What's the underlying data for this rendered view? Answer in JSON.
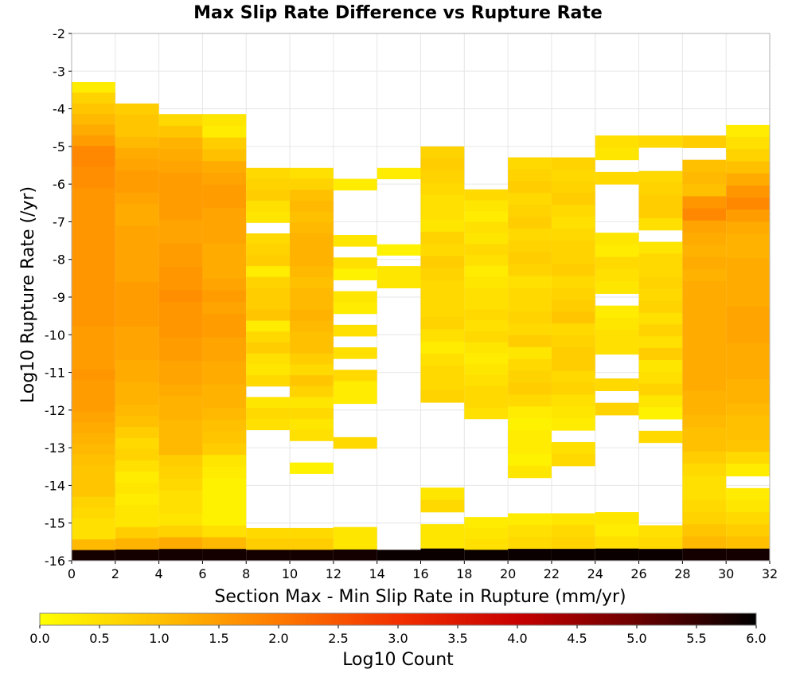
{
  "chart_data": {
    "type": "heatmap",
    "title": "Max Slip Rate Difference vs Rupture Rate",
    "xlabel": "Section Max - Min Slip Rate in Rupture (mm/yr)",
    "ylabel": "Log10 Rupture Rate (/yr)",
    "xlim": [
      0,
      32
    ],
    "ylim": [
      -16,
      -2
    ],
    "x_ticks": [
      "0",
      "2",
      "4",
      "6",
      "8",
      "10",
      "12",
      "14",
      "16",
      "18",
      "20",
      "22",
      "24",
      "26",
      "28",
      "30",
      "32"
    ],
    "y_ticks": [
      "-2",
      "-3",
      "-4",
      "-5",
      "-6",
      "-7",
      "-8",
      "-9",
      "-10",
      "-11",
      "-12",
      "-13",
      "-14",
      "-15",
      "-16"
    ],
    "x_bin_width": 2,
    "y_bin_height": 0.286,
    "colorbar": {
      "label": "Log10 Count",
      "range": [
        0,
        6
      ],
      "ticks": [
        "0.0",
        "0.5",
        "1.0",
        "1.5",
        "2.0",
        "2.5",
        "3.0",
        "3.5",
        "4.0",
        "4.5",
        "5.0",
        "5.5",
        "6.0"
      ],
      "colormap": [
        "#ffff00",
        "#ffc000",
        "#ff7a00",
        "#f23000",
        "#c80000",
        "#6a0000",
        "#000000"
      ]
    },
    "columns": [
      {
        "x": 0,
        "y_top": -3.29,
        "y_bottom": -16.0,
        "log10_counts": [
          0.3,
          0.7,
          0.9,
          1.1,
          1.3,
          1.5,
          1.8,
          1.8,
          1.7,
          1.7,
          1.6,
          1.6,
          1.6,
          1.6,
          1.6,
          1.6,
          1.6,
          1.6,
          1.6,
          1.6,
          1.6,
          1.6,
          1.6,
          1.5,
          1.5,
          1.5,
          1.5,
          1.6,
          1.5,
          1.5,
          1.5,
          1.4,
          1.3,
          1.2,
          1.1,
          1.0,
          0.9,
          0.9,
          0.9,
          0.7,
          0.6,
          0.5,
          0.5,
          1.1,
          5.8
        ]
      },
      {
        "x": 2,
        "y_top": -3.86,
        "y_bottom": -16.0,
        "log10_counts": [
          0.8,
          0.9,
          0.9,
          1.1,
          1.3,
          1.4,
          1.5,
          1.5,
          1.4,
          1.3,
          1.3,
          1.4,
          1.4,
          1.4,
          1.4,
          1.4,
          1.5,
          1.5,
          1.5,
          1.5,
          1.4,
          1.4,
          1.4,
          1.3,
          1.3,
          1.2,
          1.2,
          1.1,
          1.0,
          0.8,
          0.6,
          0.7,
          0.5,
          0.3,
          0.4,
          0.3,
          0.4,
          0.4,
          0.8,
          1.2,
          5.8
        ]
      },
      {
        "x": 4,
        "y_top": -4.14,
        "y_bottom": -16.0,
        "log10_counts": [
          0.6,
          0.9,
          1.2,
          1.3,
          1.4,
          1.5,
          1.5,
          1.5,
          1.5,
          1.4,
          1.4,
          1.5,
          1.5,
          1.6,
          1.6,
          1.7,
          1.6,
          1.6,
          1.6,
          1.5,
          1.5,
          1.4,
          1.4,
          1.3,
          1.2,
          1.2,
          1.1,
          1.1,
          1.1,
          0.8,
          0.7,
          0.6,
          0.5,
          0.5,
          0.4,
          0.7,
          1.3,
          5.8
        ]
      },
      {
        "x": 6,
        "y_top": -4.14,
        "y_bottom": -16.0,
        "log10_counts": [
          0.4,
          0.3,
          0.8,
          1.0,
          1.3,
          1.4,
          1.5,
          1.5,
          1.4,
          1.4,
          1.4,
          1.3,
          1.3,
          1.3,
          1.4,
          1.5,
          1.4,
          1.5,
          1.5,
          1.4,
          1.4,
          1.3,
          1.3,
          1.2,
          1.2,
          1.1,
          1.0,
          0.9,
          0.8,
          0.4,
          0.3,
          0.2,
          0.2,
          0.2,
          0.2,
          0.5,
          1.1,
          5.8
        ]
      },
      {
        "x": 8,
        "y_top": -5.57,
        "y_bottom": -16.0,
        "log10_counts": [
          0.6,
          0.7,
          0.8,
          0.5,
          0.4,
          null,
          0.6,
          0.7,
          0.8,
          0.3,
          0.7,
          0.8,
          0.8,
          0.9,
          0.3,
          0.6,
          0.8,
          0.5,
          0.4,
          0.6,
          null,
          0.4,
          0.6,
          0.5,
          null,
          null,
          null,
          null,
          null,
          null,
          null,
          null,
          null,
          0.6,
          0.8,
          5.8
        ]
      },
      {
        "x": 10,
        "y_top": -5.57,
        "y_bottom": -16.0,
        "log10_counts": [
          0.5,
          0.7,
          1.0,
          1.1,
          1.0,
          1.1,
          1.2,
          1.2,
          1.2,
          1.1,
          1.0,
          1.1,
          1.1,
          1.2,
          1.1,
          1.0,
          1.0,
          0.8,
          0.6,
          0.9,
          0.7,
          0.4,
          0.6,
          0.4,
          0.5,
          null,
          null,
          0.2,
          null,
          null,
          null,
          null,
          null,
          0.6,
          0.8,
          5.8
        ]
      },
      {
        "x": 12,
        "y_top": -5.86,
        "y_bottom": -16.0,
        "log10_counts": [
          0.3,
          null,
          null,
          null,
          null,
          0.4,
          null,
          0.5,
          0.2,
          null,
          0.4,
          0.3,
          null,
          0.5,
          null,
          0.5,
          null,
          0.6,
          0.3,
          0.3,
          null,
          null,
          null,
          0.6,
          null,
          null,
          null,
          null,
          null,
          null,
          null,
          0.4,
          0.4,
          5.8
        ]
      },
      {
        "x": 14,
        "y_top": -5.57,
        "y_bottom": -16.0,
        "log10_counts": [
          0.3,
          null,
          null,
          null,
          null,
          null,
          null,
          0.2,
          null,
          0.4,
          0.4,
          null,
          null,
          null,
          null,
          null,
          null,
          null,
          null,
          null,
          null,
          null,
          null,
          null,
          null,
          null,
          null,
          null,
          null,
          null,
          null,
          null,
          null,
          null,
          null,
          5.9
        ]
      },
      {
        "x": 16,
        "y_top": -5.0,
        "y_bottom": -16.0,
        "log10_counts": [
          0.7,
          0.8,
          0.7,
          0.6,
          0.5,
          0.5,
          0.4,
          0.7,
          0.6,
          0.8,
          0.7,
          0.6,
          0.6,
          0.6,
          0.7,
          0.5,
          0.3,
          0.5,
          0.6,
          0.6,
          0.7,
          null,
          null,
          null,
          null,
          null,
          null,
          null,
          0.4,
          0.6,
          null,
          0.4,
          0.4,
          5.9
        ]
      },
      {
        "x": 18,
        "y_top": -6.14,
        "y_bottom": -16.0,
        "log10_counts": [
          0.6,
          0.4,
          0.3,
          0.5,
          0.4,
          0.6,
          0.5,
          0.3,
          0.4,
          0.5,
          0.5,
          0.6,
          0.5,
          0.6,
          0.4,
          0.3,
          0.4,
          0.5,
          0.6,
          0.6,
          0.5,
          null,
          null,
          null,
          null,
          null,
          null,
          null,
          null,
          null,
          0.3,
          0.4,
          0.5,
          5.9
        ]
      },
      {
        "x": 20,
        "y_top": -5.29,
        "y_bottom": -16.0,
        "log10_counts": [
          0.6,
          0.7,
          0.8,
          0.6,
          0.7,
          0.8,
          0.6,
          0.7,
          0.8,
          0.7,
          0.5,
          0.6,
          0.6,
          0.7,
          0.6,
          0.8,
          0.4,
          0.6,
          0.7,
          0.8,
          0.6,
          0.3,
          0.2,
          0.3,
          0.3,
          0.2,
          0.4,
          null,
          null,
          null,
          0.3,
          0.5,
          0.6,
          5.9
        ]
      },
      {
        "x": 22,
        "y_top": -5.29,
        "y_bottom": -16.0,
        "log10_counts": [
          0.7,
          0.6,
          0.7,
          0.8,
          0.6,
          0.5,
          0.6,
          0.7,
          0.7,
          0.8,
          0.6,
          0.7,
          0.8,
          0.9,
          0.6,
          0.7,
          0.8,
          0.8,
          0.6,
          0.7,
          0.5,
          0.4,
          0.3,
          null,
          0.5,
          0.6,
          null,
          null,
          null,
          null,
          0.4,
          0.6,
          0.7,
          5.9
        ]
      },
      {
        "x": 24,
        "y_top": -4.71,
        "y_bottom": -16.0,
        "log10_counts": [
          0.5,
          0.4,
          null,
          0.6,
          null,
          null,
          null,
          null,
          0.4,
          0.3,
          0.6,
          0.5,
          0.4,
          null,
          0.3,
          0.4,
          0.5,
          0.5,
          null,
          null,
          0.6,
          null,
          0.7,
          null,
          null,
          null,
          null,
          null,
          null,
          null,
          null,
          0.4,
          0.3,
          0.5,
          5.9
        ]
      },
      {
        "x": 26,
        "y_top": -4.71,
        "y_bottom": -16.0,
        "log10_counts": [
          0.6,
          null,
          null,
          0.6,
          0.7,
          0.8,
          0.8,
          0.5,
          null,
          0.4,
          0.6,
          0.6,
          0.7,
          0.6,
          0.7,
          0.5,
          0.7,
          0.5,
          0.8,
          0.4,
          0.5,
          0.7,
          0.4,
          0.2,
          null,
          0.6,
          null,
          null,
          null,
          null,
          null,
          null,
          null,
          0.5,
          0.6,
          5.9
        ]
      },
      {
        "x": 28,
        "y_top": -4.71,
        "y_bottom": -16.0,
        "log10_counts": [
          0.8,
          null,
          1.0,
          1.1,
          1.0,
          1.6,
          1.8,
          1.4,
          1.3,
          1.2,
          1.3,
          1.2,
          1.3,
          1.3,
          1.3,
          1.3,
          1.3,
          1.3,
          1.3,
          1.3,
          1.3,
          1.2,
          1.2,
          1.1,
          1.0,
          1.0,
          0.8,
          0.6,
          0.5,
          0.5,
          0.6,
          0.7,
          0.9,
          1.1,
          5.8
        ]
      },
      {
        "x": 30,
        "y_top": -4.43,
        "y_bottom": -16.0,
        "log10_counts": [
          0.3,
          0.5,
          0.7,
          1.0,
          1.3,
          1.6,
          1.8,
          1.5,
          1.3,
          1.2,
          1.2,
          1.3,
          1.3,
          1.3,
          1.3,
          1.4,
          1.4,
          1.4,
          1.3,
          1.3,
          1.3,
          1.2,
          1.2,
          1.1,
          1.0,
          1.0,
          0.9,
          0.6,
          0.3,
          null,
          0.3,
          0.4,
          0.6,
          0.8,
          1.0,
          5.8
        ]
      }
    ]
  }
}
